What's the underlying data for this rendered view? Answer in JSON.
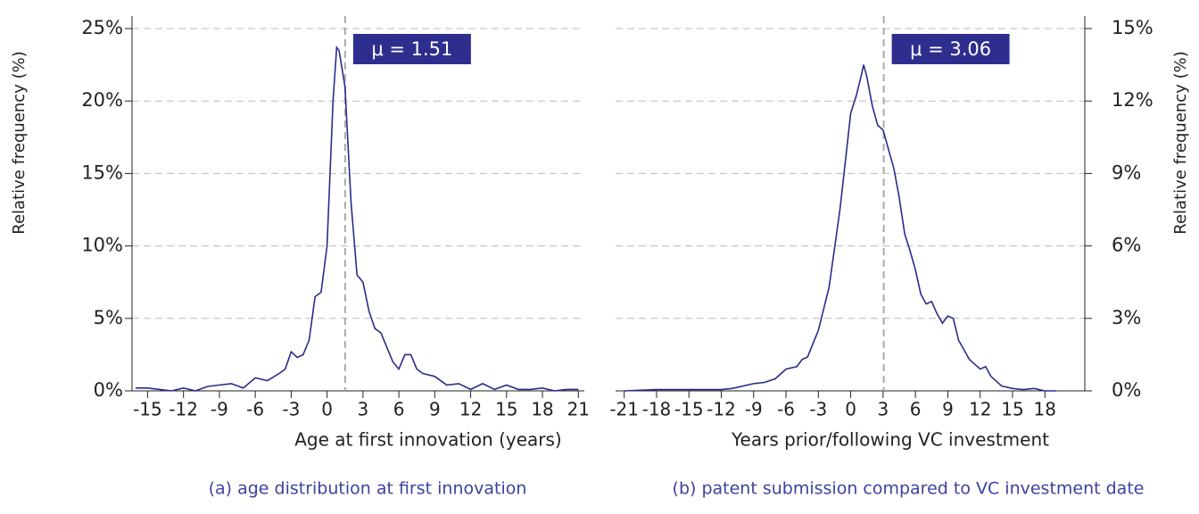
{
  "chart_data": [
    {
      "type": "line",
      "color": "#2b2b8c",
      "ylabel": "Relative frequency (%)",
      "xlabel": "Age at first innovation (years)",
      "caption": "(a) age distribution at first innovation",
      "yaxis_side": "left",
      "grid": true,
      "mean": {
        "value": 1.51,
        "label": "μ = 1.51"
      },
      "xlim": [
        -16.3,
        21.5
      ],
      "ylim": [
        0,
        25
      ],
      "xticks": [
        -15,
        -12,
        -9,
        -6,
        -3,
        0,
        3,
        6,
        9,
        12,
        15,
        18,
        21
      ],
      "yticks": [
        {
          "value": 0,
          "label": "0%"
        },
        {
          "value": 5,
          "label": "5%"
        },
        {
          "value": 10,
          "label": "10%"
        },
        {
          "value": 15,
          "label": "15%"
        },
        {
          "value": 20,
          "label": "20%"
        },
        {
          "value": 25,
          "label": "25%"
        }
      ],
      "x": [
        -16,
        -15,
        -14,
        -13,
        -12,
        -11,
        -10,
        -9,
        -8,
        -7,
        -6,
        -5,
        -4,
        -3.5,
        -3,
        -2.5,
        -2,
        -1.5,
        -1,
        -0.5,
        0,
        0.5,
        0.8,
        1,
        1.5,
        2,
        2.5,
        3,
        3.5,
        4,
        4.5,
        5,
        5.5,
        6,
        6.5,
        7,
        7.5,
        8,
        9,
        10,
        11,
        12,
        13,
        14,
        15,
        16,
        17,
        18,
        19,
        20,
        21
      ],
      "values": [
        0.2,
        0.2,
        0.1,
        0.0,
        0.2,
        0.0,
        0.3,
        0.4,
        0.5,
        0.2,
        0.9,
        0.7,
        1.2,
        1.5,
        2.7,
        2.3,
        2.5,
        3.5,
        6.5,
        6.8,
        10,
        20,
        23.7,
        23.5,
        21,
        13,
        8,
        7.5,
        5.5,
        4.3,
        4.0,
        3.0,
        2.0,
        1.5,
        2.5,
        2.5,
        1.5,
        1.2,
        1.0,
        0.4,
        0.5,
        0.1,
        0.5,
        0.1,
        0.4,
        0.1,
        0.1,
        0.2,
        0.0,
        0.1,
        0.1
      ]
    },
    {
      "type": "line",
      "color": "#2b2b8c",
      "ylabel": "Relative frequency (%)",
      "xlabel": "Years prior/following VC investment",
      "caption": "(b) patent submission compared to VC investment date",
      "yaxis_side": "right",
      "grid": true,
      "mean": {
        "value": 3.06,
        "label": "μ = 3.06"
      },
      "xlim": [
        -21.8,
        21.7
      ],
      "ylim": [
        0,
        15
      ],
      "xticks": [
        -21,
        -18,
        -15,
        -12,
        -9,
        -6,
        -3,
        0,
        3,
        6,
        9,
        12,
        15,
        18
      ],
      "yticks": [
        {
          "value": 0,
          "label": "0%"
        },
        {
          "value": 3,
          "label": "3%"
        },
        {
          "value": 6,
          "label": "6%"
        },
        {
          "value": 9,
          "label": "9%"
        },
        {
          "value": 12,
          "label": "12%"
        },
        {
          "value": 15,
          "label": "15%"
        }
      ],
      "x": [
        -21,
        -18,
        -15,
        -12,
        -11,
        -10,
        -9,
        -8,
        -7,
        -6,
        -5,
        -4.5,
        -4,
        -3,
        -2,
        -1,
        -0.5,
        0,
        0.5,
        1,
        1.2,
        1.5,
        2,
        2.5,
        3,
        3.5,
        4,
        4.5,
        5,
        5.5,
        6,
        6.5,
        7,
        7.5,
        8,
        8.5,
        9,
        9.5,
        10,
        11,
        12,
        12.5,
        13,
        14,
        15,
        16,
        17,
        18,
        19
      ],
      "values": [
        0,
        0.05,
        0.05,
        0.05,
        0.1,
        0.2,
        0.3,
        0.35,
        0.5,
        0.9,
        1.0,
        1.3,
        1.4,
        2.5,
        4.3,
        7.5,
        9.5,
        11.5,
        12.2,
        13.1,
        13.5,
        13.0,
        11.8,
        11.0,
        10.8,
        10.0,
        9.2,
        8.0,
        6.5,
        5.8,
        5.0,
        4.0,
        3.6,
        3.7,
        3.2,
        2.8,
        3.1,
        3.0,
        2.1,
        1.3,
        0.9,
        1.0,
        0.6,
        0.2,
        0.1,
        0.05,
        0.1,
        0.0,
        0.0
      ]
    }
  ]
}
